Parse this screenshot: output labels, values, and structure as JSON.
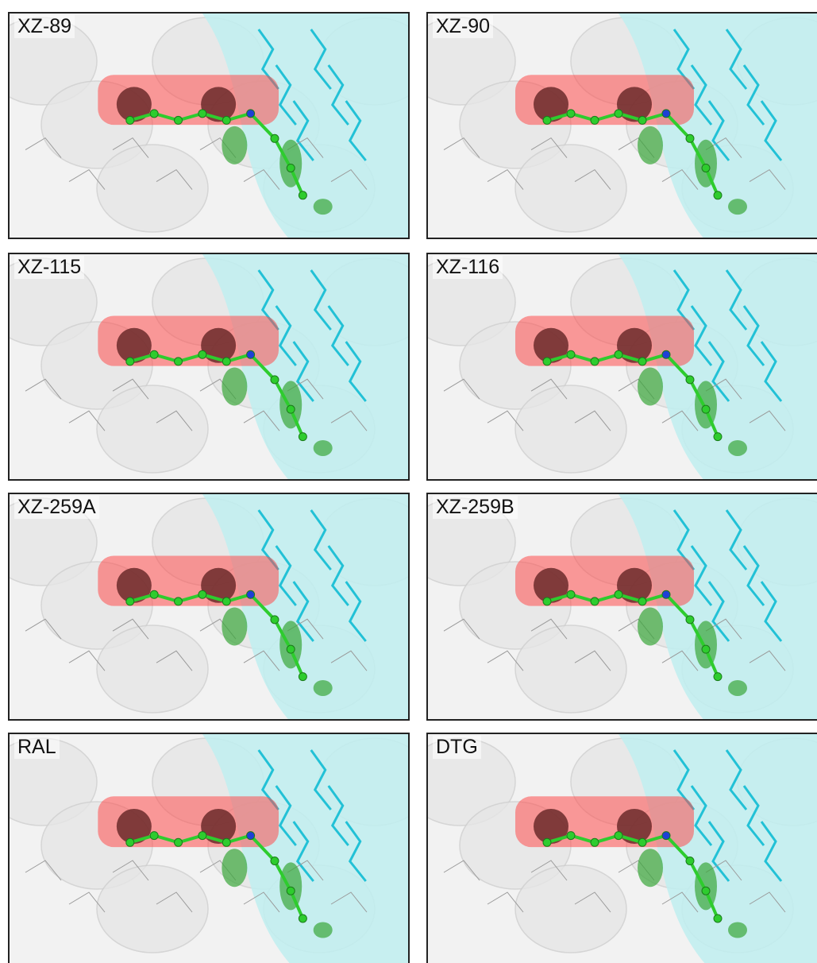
{
  "panels": [
    {
      "label": "XZ-89"
    },
    {
      "label": "XZ-90"
    },
    {
      "label": "XZ-115"
    },
    {
      "label": "XZ-116"
    },
    {
      "label": "XZ-259A"
    },
    {
      "label": "XZ-259B"
    },
    {
      "label": "RAL"
    },
    {
      "label": "DTG"
    }
  ]
}
